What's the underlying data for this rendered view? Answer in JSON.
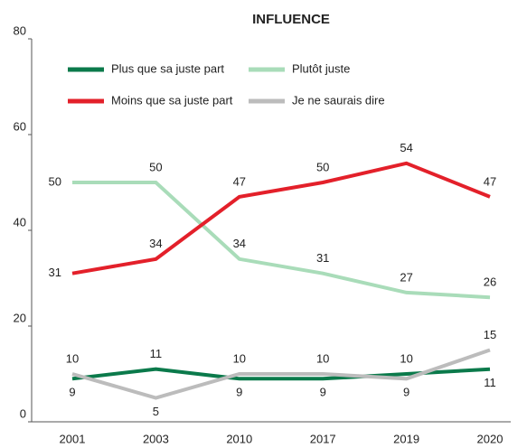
{
  "chart_data": {
    "type": "line",
    "title": "INFLUENCE",
    "categories": [
      "2001",
      "2003",
      "2010",
      "2017",
      "2019",
      "2020"
    ],
    "series": [
      {
        "name": "Plus que sa juste part",
        "color": "#0b7a4b",
        "values": [
          9,
          11,
          9,
          9,
          10,
          11
        ]
      },
      {
        "name": "Plutôt juste",
        "color": "#a9dcb9",
        "values": [
          50,
          50,
          34,
          31,
          27,
          26
        ]
      },
      {
        "name": "Moins que sa juste part",
        "color": "#e3202a",
        "values": [
          31,
          34,
          47,
          50,
          54,
          47
        ]
      },
      {
        "name": "Je ne saurais dire",
        "color": "#bcbcbc",
        "values": [
          10,
          5,
          10,
          10,
          9,
          15
        ]
      }
    ],
    "ylim": [
      0,
      80
    ],
    "yticks": [
      0,
      20,
      40,
      60,
      80
    ]
  }
}
